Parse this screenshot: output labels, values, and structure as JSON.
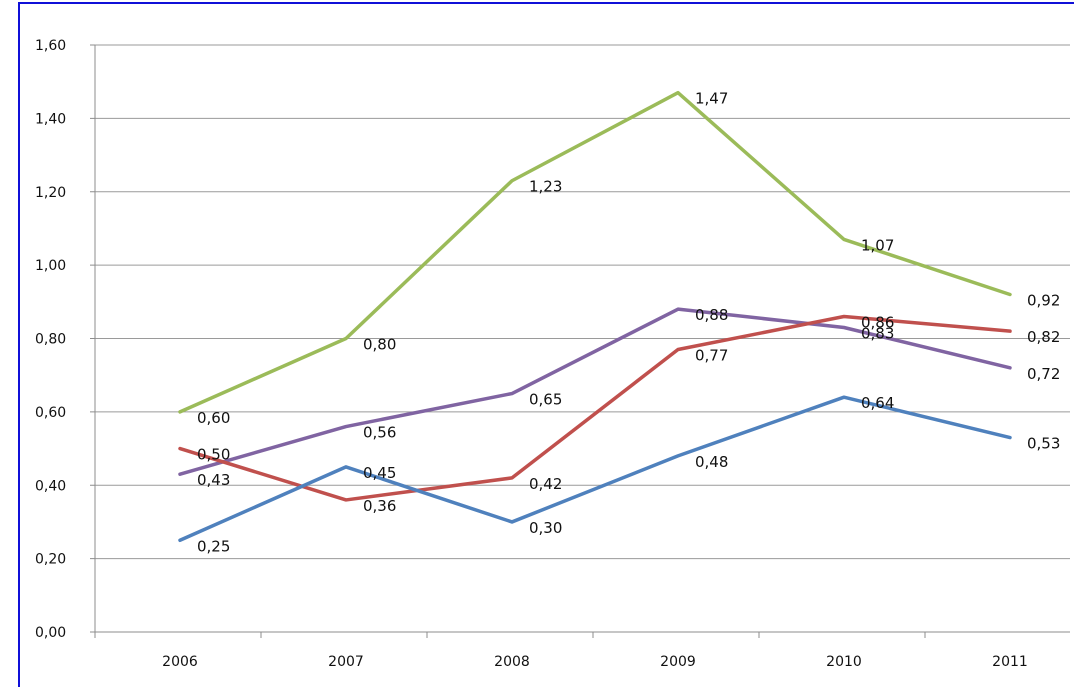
{
  "chart_data": {
    "type": "line",
    "categories": [
      "2006",
      "2007",
      "2008",
      "2009",
      "2010",
      "2011"
    ],
    "ylim": [
      0,
      1.6
    ],
    "ytick_labels": [
      "0,00",
      "0,20",
      "0,40",
      "0,60",
      "0,80",
      "1,00",
      "1,20",
      "1,40",
      "1,60"
    ],
    "grid": true,
    "legend": "none",
    "title": "",
    "xlabel": "",
    "ylabel": "",
    "series": [
      {
        "color": "#9bbb59",
        "values": [
          0.6,
          0.8,
          1.23,
          1.47,
          1.07,
          0.92
        ],
        "labels": [
          "0,60",
          "0,80",
          "1,23",
          "1,47",
          "1,07",
          "0,92"
        ]
      },
      {
        "color": "#8064a2",
        "values": [
          0.43,
          0.56,
          0.65,
          0.88,
          0.83,
          0.72
        ],
        "labels": [
          "0,43",
          "0,56",
          "0,65",
          "0,88",
          "0,83",
          "0,72"
        ]
      },
      {
        "color": "#c0504d",
        "values": [
          0.5,
          0.36,
          0.42,
          0.77,
          0.86,
          0.82
        ],
        "labels": [
          "0,50",
          "0,36",
          "0,42",
          "0,77",
          "0,86",
          "0,82"
        ]
      },
      {
        "color": "#4f81bd",
        "values": [
          0.25,
          0.45,
          0.3,
          0.48,
          0.64,
          0.53
        ],
        "labels": [
          "0,25",
          "0,45",
          "0,30",
          "0,48",
          "0,64",
          "0,53"
        ]
      }
    ]
  }
}
